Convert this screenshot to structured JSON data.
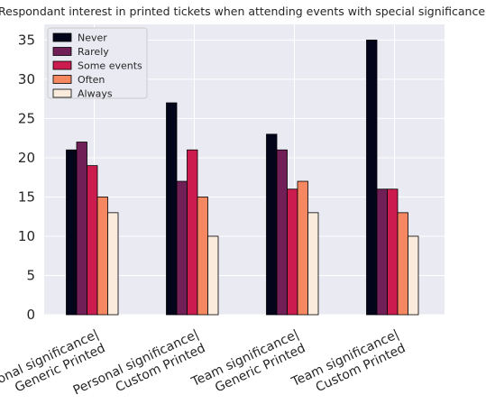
{
  "chart_data": {
    "type": "bar",
    "title": "Respondant interest in printed tickets when attending events with special significance.",
    "xlabel": "",
    "ylabel": "",
    "ylim": [
      0,
      37
    ],
    "yticks": [
      0,
      5,
      10,
      15,
      20,
      25,
      30,
      35
    ],
    "grid": true,
    "legend_position": "top-left",
    "categories": [
      [
        "Personal significance|",
        "Generic Printed"
      ],
      [
        "Personal significance|",
        "Custom Printed"
      ],
      [
        "Team significance|",
        "Generic Printed"
      ],
      [
        "Team significance|",
        "Custom Printed"
      ]
    ],
    "series": [
      {
        "name": "Never",
        "color": "#03051a",
        "values": [
          21,
          27,
          23,
          35
        ]
      },
      {
        "name": "Rarely",
        "color": "#701f57",
        "values": [
          22,
          17,
          21,
          16
        ]
      },
      {
        "name": "Some events",
        "color": "#cb1b4f",
        "values": [
          19,
          21,
          16,
          16
        ]
      },
      {
        "name": "Often",
        "color": "#f58860",
        "values": [
          15,
          15,
          17,
          13
        ]
      },
      {
        "name": "Always",
        "color": "#faebdd",
        "values": [
          13,
          10,
          13,
          10
        ]
      }
    ]
  }
}
